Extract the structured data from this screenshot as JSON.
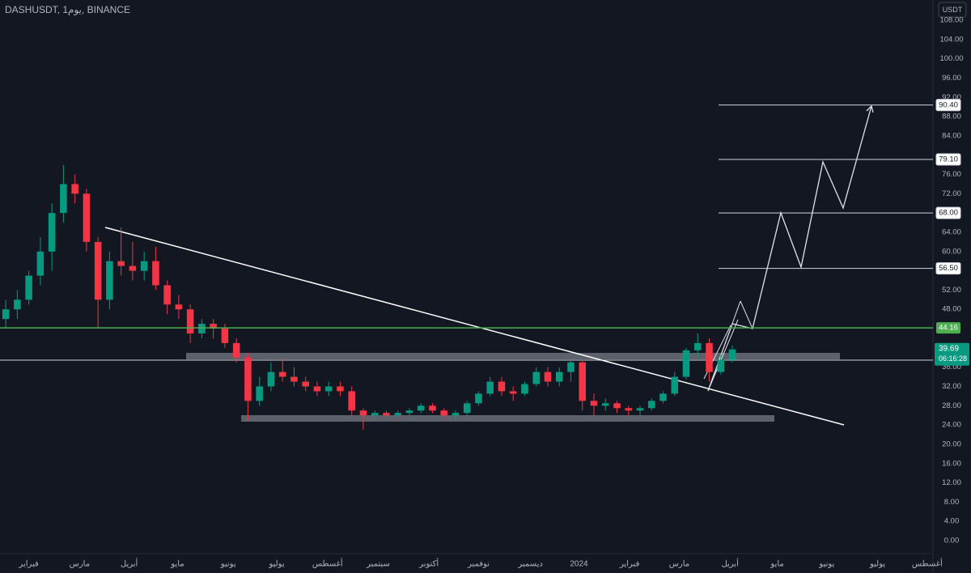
{
  "chart_data": {
    "type": "candlestick",
    "title": "DASHUSDT, 1يوم, BINANCE",
    "currency": "USDT",
    "countdown": "06:16:28",
    "up_color": "#089981",
    "down_color": "#f23645",
    "x": [
      0.5,
      1.5,
      2.5,
      3.5,
      4.5,
      5.5,
      6.5,
      7.5,
      8.5,
      9.5,
      10.5,
      11.5,
      12.5,
      13.5,
      14.5,
      15.5,
      16.5,
      17.5,
      18.5,
      19.5,
      20.5,
      21.5,
      22.5,
      23.5,
      24.5,
      25.5,
      26.5,
      27.5,
      28.5,
      29.5,
      30.5,
      31.5,
      32.5,
      33.5,
      34.5,
      35.5,
      36.5,
      37.5,
      38.5,
      39.5,
      40.5,
      41.5,
      42.5,
      43.5,
      44.5,
      45.5,
      46.5,
      47.5,
      48.5,
      49.5,
      50.5,
      51.5,
      52.5,
      53.5,
      54.5,
      55.5,
      56.5,
      57.5,
      58.5,
      59.5,
      60.5,
      61.5,
      62.5,
      63.5
    ],
    "open": [
      46,
      48,
      50,
      55,
      60,
      68,
      74,
      72,
      62,
      50,
      58,
      57,
      56,
      58,
      53,
      49,
      48,
      43,
      45,
      44,
      41,
      38,
      29,
      32,
      35,
      34,
      33,
      32,
      31,
      32,
      31,
      27,
      26,
      26.5,
      26,
      26.5,
      27,
      28,
      27,
      26,
      26.5,
      28.5,
      30.5,
      33,
      31,
      30.5,
      32.5,
      35,
      33,
      35,
      37,
      29,
      28,
      28.5,
      27.5,
      27,
      27.5,
      29,
      30.5,
      34,
      39.5,
      41,
      35,
      37.5
    ],
    "high": [
      50,
      52,
      56,
      63,
      70,
      78,
      76,
      73,
      63,
      60,
      65,
      62,
      60,
      61,
      54,
      51,
      49,
      46,
      46,
      45,
      42,
      39,
      34,
      37,
      38,
      36,
      34,
      33,
      33,
      33,
      32,
      27.5,
      27,
      27,
      27,
      27.5,
      28.5,
      28.5,
      27.5,
      27,
      29,
      31,
      34,
      34,
      32,
      33,
      36,
      36,
      36,
      38,
      37.5,
      30.5,
      29.5,
      29,
      28,
      28,
      29.5,
      31,
      35,
      40,
      43,
      42,
      38.5,
      40.5
    ],
    "low": [
      44,
      46,
      49,
      53,
      56,
      66,
      70,
      60,
      44,
      48,
      55,
      54,
      54,
      52,
      47,
      46,
      41,
      42,
      42,
      40,
      37,
      25,
      28,
      31,
      33,
      32,
      31,
      30,
      30,
      30,
      26,
      23,
      25,
      25.5,
      25.5,
      26,
      26.5,
      26.5,
      25.5,
      25,
      26,
      28,
      30,
      30,
      29,
      30,
      32,
      32,
      32,
      33,
      27,
      26,
      27,
      26.5,
      26,
      26,
      27,
      28.5,
      30,
      33.5,
      38,
      33,
      34.5,
      37
    ],
    "close": [
      48,
      50,
      55,
      60,
      68,
      74,
      72,
      62,
      50,
      58,
      57,
      56,
      58,
      53,
      49,
      48,
      43,
      45,
      44,
      41,
      38,
      29,
      32,
      35,
      34,
      33,
      32,
      31,
      32,
      31,
      27,
      26,
      26.5,
      26,
      26.5,
      27,
      28,
      27,
      26,
      26.5,
      28.5,
      30.5,
      33,
      31,
      30.5,
      32.5,
      35,
      33,
      35,
      37,
      29,
      28,
      28.5,
      27.5,
      27,
      27.5,
      29,
      30.5,
      34,
      39.5,
      41,
      35,
      37.5,
      39.69
    ],
    "xlim": [
      0,
      80.9
    ],
    "xticks": [
      {
        "value": 2.5,
        "label": "فبراير"
      },
      {
        "value": 6.9,
        "label": "مارس"
      },
      {
        "value": 11.2,
        "label": "أبريل"
      },
      {
        "value": 15.4,
        "label": "مايو"
      },
      {
        "value": 19.8,
        "label": "يونيو"
      },
      {
        "value": 24,
        "label": "يوليو"
      },
      {
        "value": 28.4,
        "label": "أغسطس"
      },
      {
        "value": 32.8,
        "label": "سبتمبر"
      },
      {
        "value": 37.2,
        "label": "أكتوبر"
      },
      {
        "value": 41.5,
        "label": "نوفمبر"
      },
      {
        "value": 46,
        "label": "ديسمبر"
      },
      {
        "value": 50.2,
        "label": "2024"
      },
      {
        "value": 54.6,
        "label": "فبراير"
      },
      {
        "value": 58.9,
        "label": "مارس"
      },
      {
        "value": 63.3,
        "label": "أبريل"
      },
      {
        "value": 67.4,
        "label": "مايو"
      },
      {
        "value": 71.7,
        "label": "يونيو"
      },
      {
        "value": 76.1,
        "label": "يوليو"
      },
      {
        "value": 80.4,
        "label": "أغسطس"
      }
    ],
    "ylim": [
      0,
      108
    ],
    "yticks": [
      {
        "value": 0,
        "label": "0.00"
      },
      {
        "value": 4,
        "label": "4.00"
      },
      {
        "value": 8,
        "label": "8.00"
      },
      {
        "value": 12,
        "label": "12.00"
      },
      {
        "value": 16,
        "label": "16.00"
      },
      {
        "value": 20,
        "label": "20.00"
      },
      {
        "value": 24,
        "label": "24.00"
      },
      {
        "value": 28,
        "label": "28.00"
      },
      {
        "value": 32,
        "label": "32.00"
      },
      {
        "value": 36,
        "label": "36.00"
      },
      {
        "value": 48,
        "label": "48.00"
      },
      {
        "value": 52,
        "label": "52.00"
      },
      {
        "value": 60,
        "label": "60.00"
      },
      {
        "value": 64,
        "label": "64.00"
      },
      {
        "value": 72,
        "label": "72.00"
      },
      {
        "value": 76,
        "label": "76.00"
      },
      {
        "value": 84,
        "label": "84.00"
      },
      {
        "value": 88,
        "label": "88.00"
      },
      {
        "value": 92,
        "label": "92.00"
      },
      {
        "value": 96,
        "label": "96.00"
      },
      {
        "value": 100,
        "label": "100.00"
      },
      {
        "value": 104,
        "label": "104.00"
      },
      {
        "value": 108,
        "label": "108.00"
      }
    ],
    "levels": [
      {
        "value": 90.4,
        "label": "90.40"
      },
      {
        "value": 79.1,
        "label": "79.10"
      },
      {
        "value": 68,
        "label": "68.00"
      },
      {
        "value": 56.5,
        "label": "56.50"
      }
    ],
    "support": {
      "value": 44.16,
      "label": "44.16",
      "color": "#4caf50"
    },
    "last_price": {
      "value": 39.69,
      "label": "39.69",
      "color": "#089981"
    },
    "grid": false
  }
}
